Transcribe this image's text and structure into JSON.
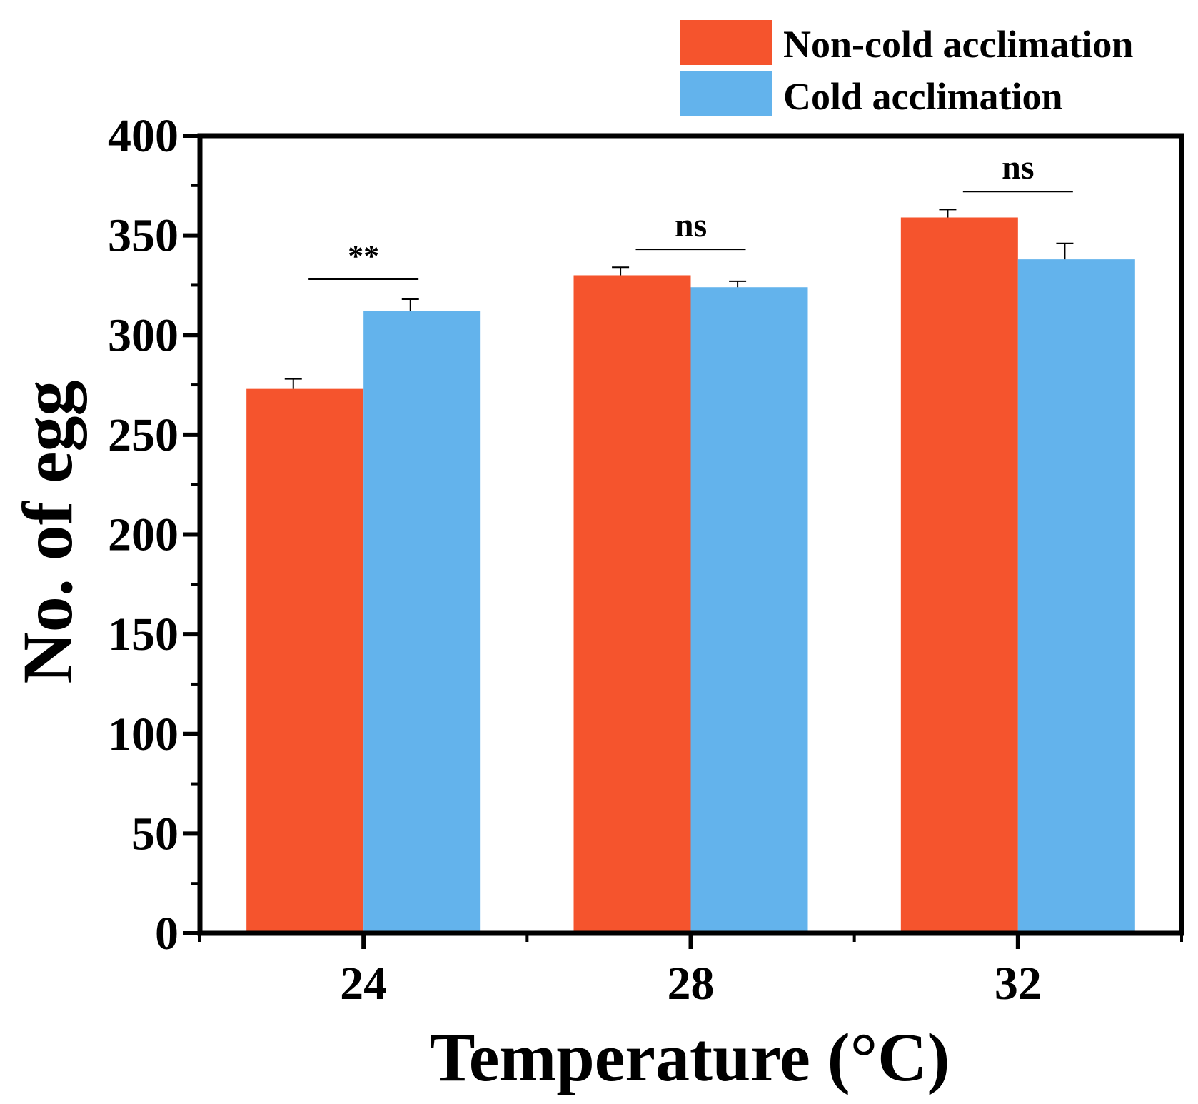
{
  "chart_data": {
    "type": "bar",
    "title": "",
    "xlabel": "Temperature (°C)",
    "ylabel": "No. of egg",
    "categories": [
      "24",
      "28",
      "32"
    ],
    "ylim": [
      0,
      400
    ],
    "yticks": [
      0,
      50,
      100,
      150,
      200,
      250,
      300,
      350,
      400
    ],
    "ytick_labels": [
      "0",
      "50",
      "100",
      "150",
      "200",
      "250",
      "300",
      "350",
      "400"
    ],
    "grid": false,
    "legend_position": "top-right",
    "series": [
      {
        "name": "Non-cold acclimation",
        "color": "#f5542d",
        "values": [
          273,
          330,
          359
        ],
        "errors": [
          5,
          4,
          4
        ]
      },
      {
        "name": "Cold acclimation",
        "color": "#63b3ec",
        "values": [
          312,
          324,
          338
        ],
        "errors": [
          6,
          3,
          8
        ]
      }
    ],
    "annotations": [
      {
        "category": "24",
        "text": "**",
        "y": 328
      },
      {
        "category": "28",
        "text": "ns",
        "y": 343
      },
      {
        "category": "32",
        "text": "ns",
        "y": 372
      }
    ]
  }
}
